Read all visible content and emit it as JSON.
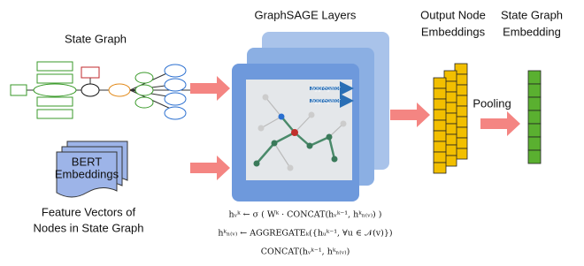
{
  "state_graph": {
    "title": "State Graph"
  },
  "features": {
    "document_label": [
      "BERT",
      "Embeddings"
    ],
    "caption": [
      "Feature Vectors of",
      "Nodes in State Graph"
    ]
  },
  "graphsage": {
    "title": "GraphSAGE Layers",
    "aggregator_labels": [
      "aggregator",
      "aggregator"
    ],
    "formulas": [
      "hᵥᵏ ← σ ( Wᵏ · CONCAT(hᵥᵏ⁻¹, hᵏₙ₍ᵥ₎) )",
      "hᵏₙ₍ᵥ₎ ← AGGREGATEₖ({hᵤᵏ⁻¹, ∀u ∈ 𝒩(v)})",
      "CONCAT(hᵥᵏ⁻¹, hᵏₙ₍ᵥ₎)"
    ]
  },
  "output": {
    "title": [
      "Output Node",
      "Embeddings"
    ]
  },
  "pooling": {
    "label": "Pooling"
  },
  "graph_embedding": {
    "title": [
      "State Graph",
      "Embedding"
    ]
  }
}
